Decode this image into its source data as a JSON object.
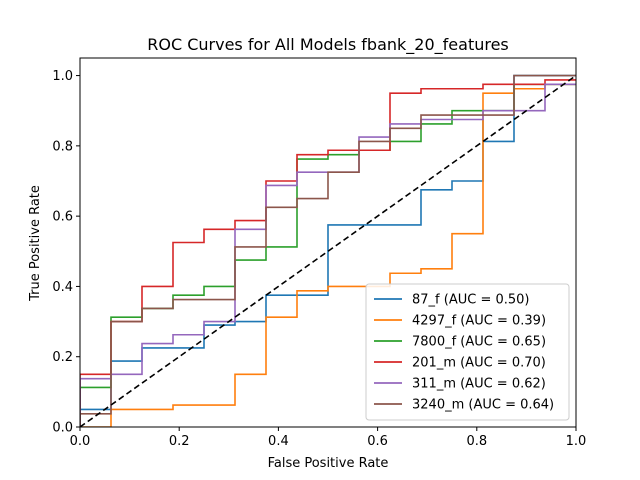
{
  "chart_data": {
    "type": "line",
    "title": "ROC Curves for All Models fbank_20_features",
    "xlabel": "False Positive Rate",
    "ylabel": "True Positive Rate",
    "xlim": [
      0,
      1
    ],
    "ylim": [
      0,
      1.05
    ],
    "xticks": [
      "0.0",
      "0.2",
      "0.4",
      "0.6",
      "0.8",
      "1.0"
    ],
    "yticks": [
      "0.0",
      "0.2",
      "0.4",
      "0.6",
      "0.8",
      "1.0"
    ],
    "legend_position": "lower-right",
    "grid": false,
    "diagonal": {
      "color": "#000000",
      "style": "dashed",
      "points": [
        [
          0,
          0
        ],
        [
          1,
          1
        ]
      ]
    },
    "series": [
      {
        "name": "87_f (AUC = 0.50)",
        "color": "#1f77b4",
        "points": [
          [
            0,
            0
          ],
          [
            0,
            0.05
          ],
          [
            0.0625,
            0.05
          ],
          [
            0.0625,
            0.1875
          ],
          [
            0.125,
            0.1875
          ],
          [
            0.125,
            0.225
          ],
          [
            0.25,
            0.225
          ],
          [
            0.25,
            0.29
          ],
          [
            0.3125,
            0.29
          ],
          [
            0.3125,
            0.3
          ],
          [
            0.375,
            0.3
          ],
          [
            0.375,
            0.375
          ],
          [
            0.5,
            0.375
          ],
          [
            0.5,
            0.575
          ],
          [
            0.6875,
            0.575
          ],
          [
            0.6875,
            0.675
          ],
          [
            0.75,
            0.675
          ],
          [
            0.75,
            0.7
          ],
          [
            0.8125,
            0.7
          ],
          [
            0.8125,
            0.875
          ],
          [
            0.8125,
            0.8125
          ],
          [
            0.875,
            0.8125
          ],
          [
            0.875,
            1.0
          ],
          [
            1.0,
            1.0
          ]
        ]
      },
      {
        "name": "4297_f (AUC = 0.39)",
        "color": "#ff7f0e",
        "points": [
          [
            0,
            0
          ],
          [
            0.0625,
            0
          ],
          [
            0.0625,
            0.05
          ],
          [
            0.1875,
            0.05
          ],
          [
            0.1875,
            0.0625
          ],
          [
            0.3125,
            0.0625
          ],
          [
            0.3125,
            0.15
          ],
          [
            0.375,
            0.15
          ],
          [
            0.375,
            0.3125
          ],
          [
            0.4375,
            0.3125
          ],
          [
            0.4375,
            0.3875
          ],
          [
            0.5,
            0.3875
          ],
          [
            0.5,
            0.4
          ],
          [
            0.625,
            0.4
          ],
          [
            0.625,
            0.4375
          ],
          [
            0.6875,
            0.4375
          ],
          [
            0.6875,
            0.45
          ],
          [
            0.75,
            0.45
          ],
          [
            0.75,
            0.55
          ],
          [
            0.8125,
            0.55
          ],
          [
            0.8125,
            0.95
          ],
          [
            0.875,
            0.95
          ],
          [
            0.875,
            0.9625
          ],
          [
            0.9375,
            0.9625
          ],
          [
            0.9375,
            0.975
          ],
          [
            1.0,
            0.975
          ]
        ]
      },
      {
        "name": "7800_f (AUC = 0.65)",
        "color": "#2ca02c",
        "points": [
          [
            0,
            0
          ],
          [
            0,
            0.1125
          ],
          [
            0.0625,
            0.1125
          ],
          [
            0.0625,
            0.3125
          ],
          [
            0.125,
            0.3125
          ],
          [
            0.125,
            0.3375
          ],
          [
            0.1875,
            0.3375
          ],
          [
            0.1875,
            0.375
          ],
          [
            0.25,
            0.375
          ],
          [
            0.25,
            0.4
          ],
          [
            0.3125,
            0.4
          ],
          [
            0.3125,
            0.4125
          ],
          [
            0.3125,
            0.4125
          ],
          [
            0.3125,
            0.4
          ],
          [
            0.3125,
            0.475
          ],
          [
            0.375,
            0.475
          ],
          [
            0.375,
            0.5125
          ],
          [
            0.4375,
            0.5125
          ],
          [
            0.4375,
            0.7625
          ],
          [
            0.5,
            0.7625
          ],
          [
            0.5,
            0.775
          ],
          [
            0.5625,
            0.775
          ],
          [
            0.5625,
            0.7875
          ],
          [
            0.625,
            0.7875
          ],
          [
            0.625,
            0.8125
          ],
          [
            0.6875,
            0.8125
          ],
          [
            0.6875,
            0.8625
          ],
          [
            0.75,
            0.8625
          ],
          [
            0.75,
            0.9
          ],
          [
            0.875,
            0.9
          ],
          [
            0.875,
            0.975
          ],
          [
            1.0,
            0.975
          ]
        ]
      },
      {
        "name": "201_m (AUC = 0.70)",
        "color": "#d62728",
        "points": [
          [
            0,
            0
          ],
          [
            0,
            0.15
          ],
          [
            0.0625,
            0.15
          ],
          [
            0.0625,
            0.3
          ],
          [
            0.125,
            0.3
          ],
          [
            0.125,
            0.4
          ],
          [
            0.1875,
            0.4
          ],
          [
            0.1875,
            0.525
          ],
          [
            0.25,
            0.525
          ],
          [
            0.25,
            0.5625
          ],
          [
            0.3125,
            0.5625
          ],
          [
            0.3125,
            0.5875
          ],
          [
            0.375,
            0.5875
          ],
          [
            0.375,
            0.7
          ],
          [
            0.4375,
            0.7
          ],
          [
            0.4375,
            0.775
          ],
          [
            0.5,
            0.775
          ],
          [
            0.5,
            0.7875
          ],
          [
            0.5625,
            0.7875
          ],
          [
            0.5625,
            0.7875
          ],
          [
            0.625,
            0.7875
          ],
          [
            0.625,
            0.95
          ],
          [
            0.6875,
            0.95
          ],
          [
            0.6875,
            0.9625
          ],
          [
            0.8125,
            0.9625
          ],
          [
            0.8125,
            0.975
          ],
          [
            0.9375,
            0.975
          ],
          [
            0.9375,
            0.9875
          ],
          [
            1.0,
            0.9875
          ]
        ]
      },
      {
        "name": "311_m (AUC = 0.62)",
        "color": "#9467bd",
        "points": [
          [
            0,
            0
          ],
          [
            0,
            0.1375
          ],
          [
            0.0625,
            0.1375
          ],
          [
            0.0625,
            0.15
          ],
          [
            0.125,
            0.15
          ],
          [
            0.125,
            0.2375
          ],
          [
            0.1875,
            0.2375
          ],
          [
            0.1875,
            0.2625
          ],
          [
            0.25,
            0.2625
          ],
          [
            0.25,
            0.3
          ],
          [
            0.3125,
            0.3
          ],
          [
            0.3125,
            0.5625
          ],
          [
            0.375,
            0.5625
          ],
          [
            0.375,
            0.6875
          ],
          [
            0.4375,
            0.6875
          ],
          [
            0.4375,
            0.725
          ],
          [
            0.5625,
            0.725
          ],
          [
            0.5625,
            0.825
          ],
          [
            0.625,
            0.825
          ],
          [
            0.625,
            0.8625
          ],
          [
            0.6875,
            0.8625
          ],
          [
            0.6875,
            0.875
          ],
          [
            0.8125,
            0.875
          ],
          [
            0.8125,
            0.9
          ],
          [
            0.9375,
            0.9
          ],
          [
            0.9375,
            0.975
          ],
          [
            1.0,
            0.975
          ]
        ]
      },
      {
        "name": "3240_m (AUC = 0.64)",
        "color": "#8c564b",
        "points": [
          [
            0,
            0
          ],
          [
            0,
            0.0375
          ],
          [
            0.0625,
            0.0375
          ],
          [
            0.0625,
            0.3
          ],
          [
            0.125,
            0.3
          ],
          [
            0.125,
            0.3375
          ],
          [
            0.1875,
            0.3375
          ],
          [
            0.1875,
            0.3625
          ],
          [
            0.3125,
            0.3625
          ],
          [
            0.3125,
            0.5125
          ],
          [
            0.375,
            0.5125
          ],
          [
            0.375,
            0.625
          ],
          [
            0.4375,
            0.625
          ],
          [
            0.4375,
            0.65
          ],
          [
            0.5,
            0.65
          ],
          [
            0.5,
            0.725
          ],
          [
            0.5625,
            0.725
          ],
          [
            0.5625,
            0.8125
          ],
          [
            0.625,
            0.8125
          ],
          [
            0.625,
            0.85
          ],
          [
            0.6875,
            0.85
          ],
          [
            0.6875,
            0.8875
          ],
          [
            0.8125,
            0.8875
          ],
          [
            0.8125,
            0.8875
          ],
          [
            0.875,
            0.8875
          ],
          [
            0.875,
            1.0
          ],
          [
            1.0,
            1.0
          ]
        ]
      }
    ]
  }
}
